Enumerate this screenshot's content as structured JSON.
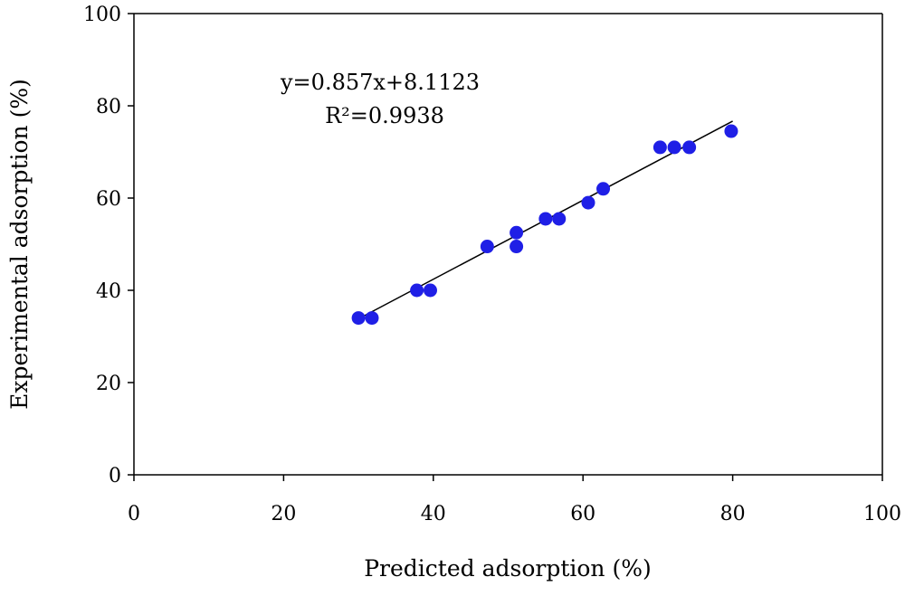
{
  "chart_data": {
    "type": "scatter",
    "xlabel": "Predicted adsorption (%)",
    "ylabel": "Experimental adsorption (%)",
    "xlim": [
      0,
      100
    ],
    "ylim": [
      0,
      100
    ],
    "xticks": [
      "0",
      "20",
      "40",
      "60",
      "80",
      "100"
    ],
    "yticks": [
      "0",
      "20",
      "40",
      "60",
      "80",
      "100"
    ],
    "grid": false,
    "annotations": [
      "y=0.857x+8.1123",
      "R²=0.9938"
    ],
    "trendline": {
      "slope": 0.857,
      "intercept": 8.1123,
      "x_range": [
        30,
        80
      ]
    },
    "marker_color": "#1f1fe6",
    "points": [
      {
        "x": 30.0,
        "y": 34.0
      },
      {
        "x": 31.8,
        "y": 34.0
      },
      {
        "x": 37.8,
        "y": 40.0
      },
      {
        "x": 39.6,
        "y": 40.0
      },
      {
        "x": 47.2,
        "y": 49.5
      },
      {
        "x": 51.1,
        "y": 49.5
      },
      {
        "x": 51.1,
        "y": 52.5
      },
      {
        "x": 55.0,
        "y": 55.5
      },
      {
        "x": 56.8,
        "y": 55.5
      },
      {
        "x": 60.7,
        "y": 59.0
      },
      {
        "x": 62.7,
        "y": 62.0
      },
      {
        "x": 70.3,
        "y": 71.0
      },
      {
        "x": 72.2,
        "y": 71.0
      },
      {
        "x": 74.2,
        "y": 71.0
      },
      {
        "x": 79.8,
        "y": 74.5
      }
    ]
  }
}
